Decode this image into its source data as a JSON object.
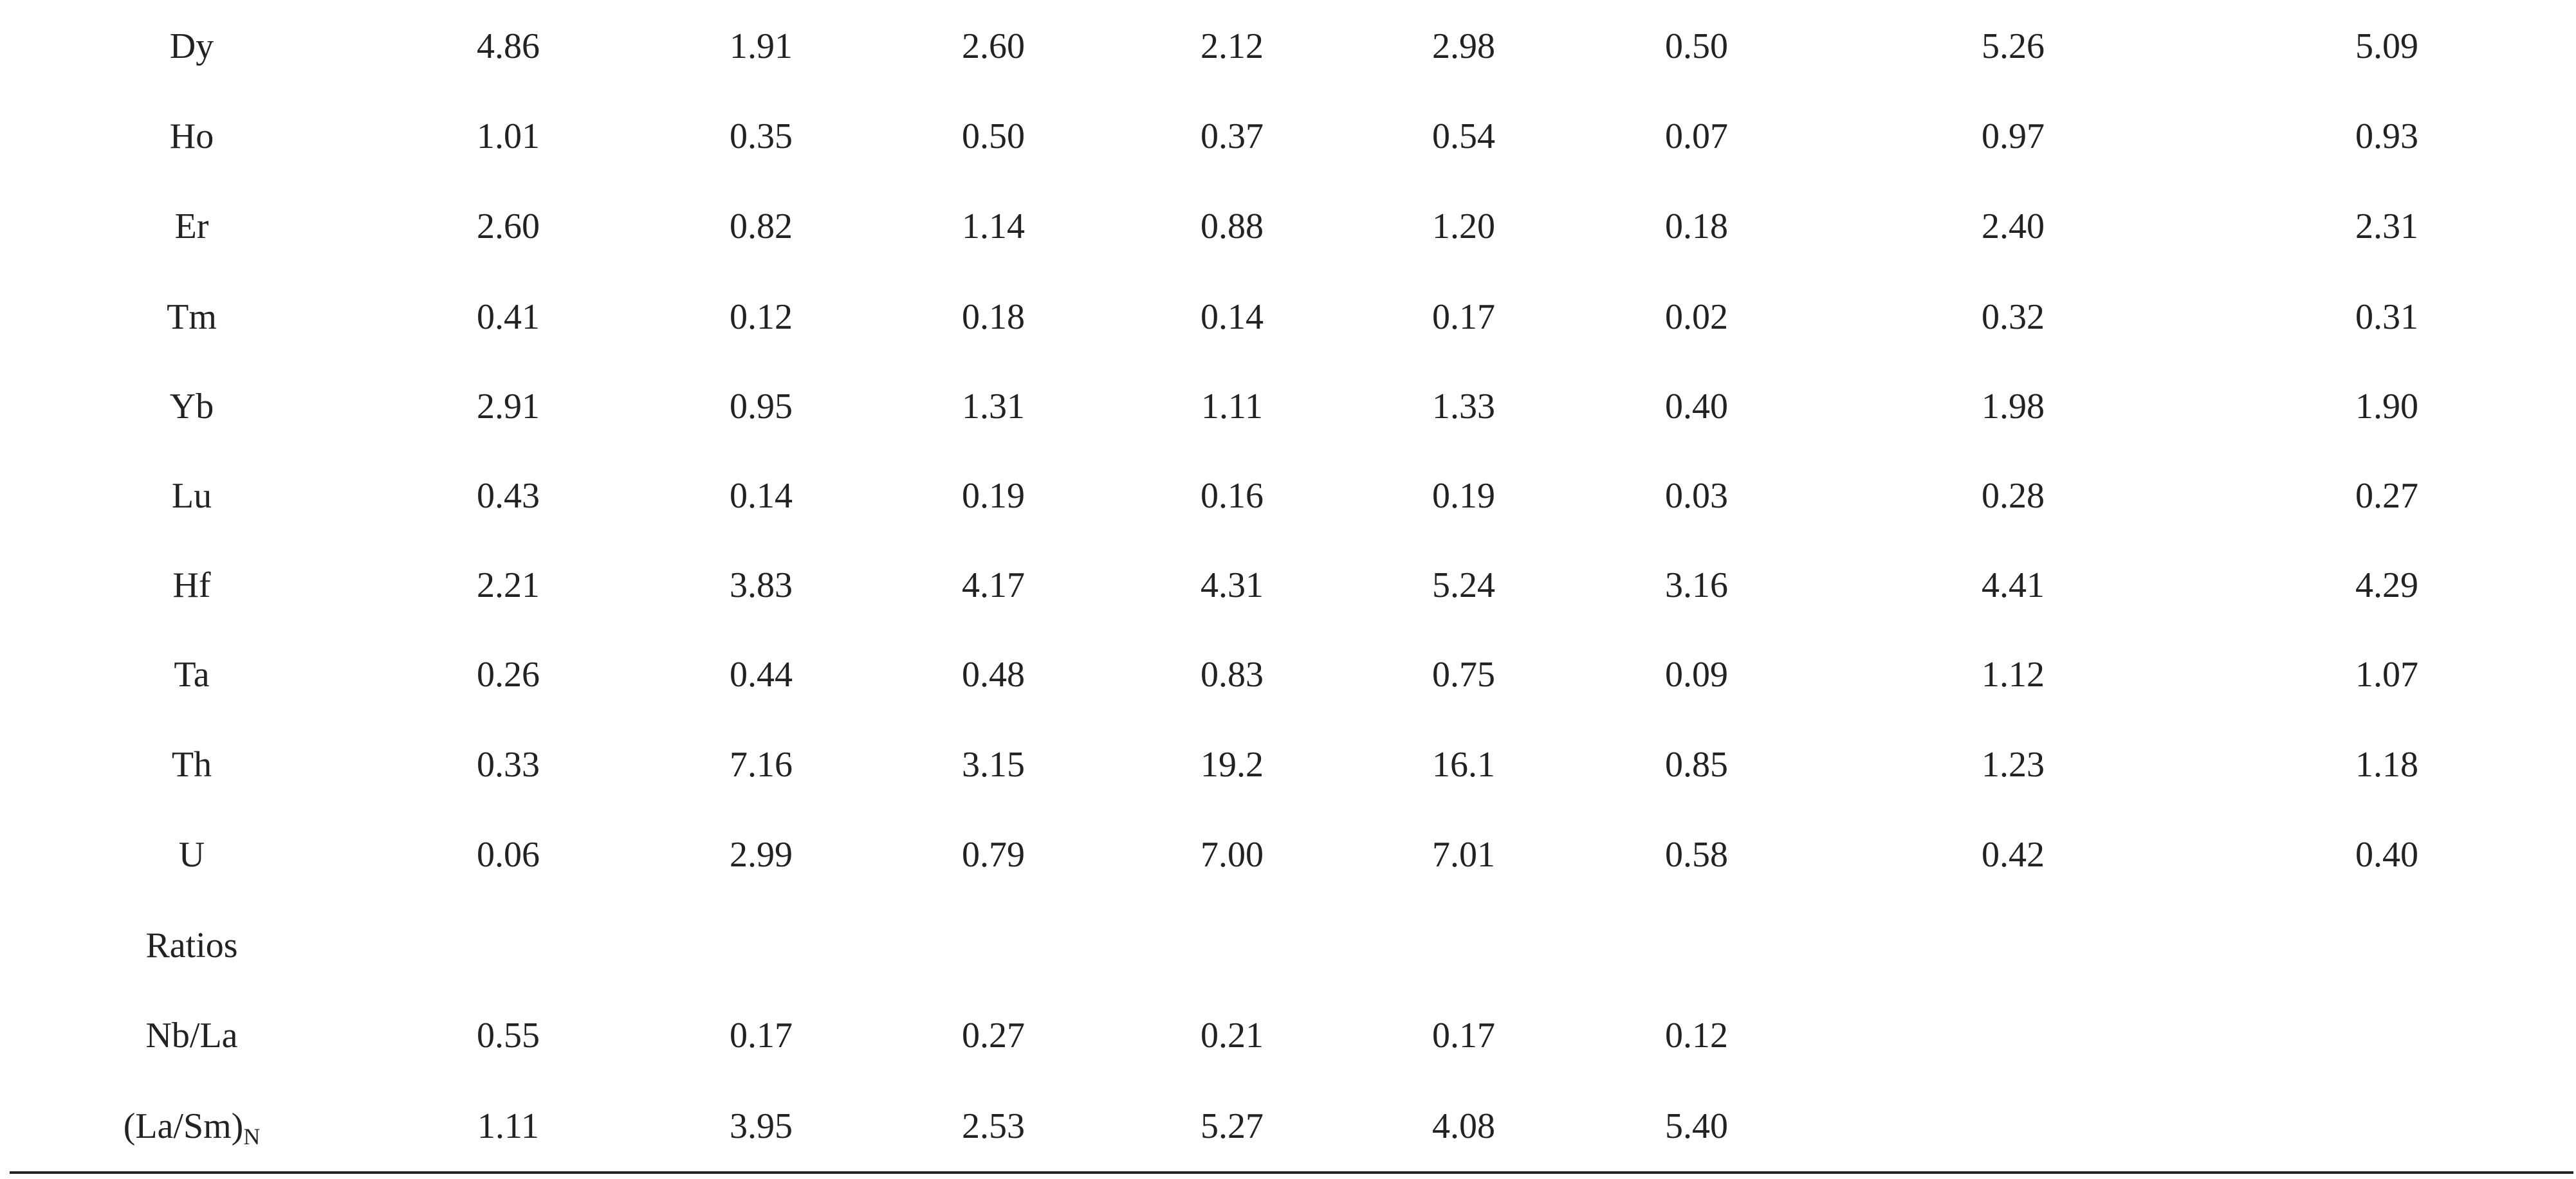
{
  "table": {
    "rows": [
      {
        "label": "Dy",
        "values": [
          "4.86",
          "1.91",
          "2.60",
          "2.12",
          "2.98",
          "0.50",
          "5.26",
          "5.09"
        ]
      },
      {
        "label": "Ho",
        "values": [
          "1.01",
          "0.35",
          "0.50",
          "0.37",
          "0.54",
          "0.07",
          "0.97",
          "0.93"
        ]
      },
      {
        "label": "Er",
        "values": [
          "2.60",
          "0.82",
          "1.14",
          "0.88",
          "1.20",
          "0.18",
          "2.40",
          "2.31"
        ]
      },
      {
        "label": "Tm",
        "values": [
          "0.41",
          "0.12",
          "0.18",
          "0.14",
          "0.17",
          "0.02",
          "0.32",
          "0.31"
        ]
      },
      {
        "label": "Yb",
        "values": [
          "2.91",
          "0.95",
          "1.31",
          "1.11",
          "1.33",
          "0.40",
          "1.98",
          "1.90"
        ]
      },
      {
        "label": "Lu",
        "values": [
          "0.43",
          "0.14",
          "0.19",
          "0.16",
          "0.19",
          "0.03",
          "0.28",
          "0.27"
        ]
      },
      {
        "label": "Hf",
        "values": [
          "2.21",
          "3.83",
          "4.17",
          "4.31",
          "5.24",
          "3.16",
          "4.41",
          "4.29"
        ]
      },
      {
        "label": "Ta",
        "values": [
          "0.26",
          "0.44",
          "0.48",
          "0.83",
          "0.75",
          "0.09",
          "1.12",
          "1.07"
        ]
      },
      {
        "label": "Th",
        "values": [
          "0.33",
          "7.16",
          "3.15",
          "19.2",
          "16.1",
          "0.85",
          "1.23",
          "1.18"
        ]
      },
      {
        "label": "U",
        "values": [
          "0.06",
          "2.99",
          "0.79",
          "7.00",
          "7.01",
          "0.58",
          "0.42",
          "0.40"
        ]
      },
      {
        "label": "Ratios",
        "values": []
      },
      {
        "label": "Nb/La",
        "values": [
          "0.55",
          "0.17",
          "0.27",
          "0.21",
          "0.17",
          "0.12"
        ]
      },
      {
        "label": "(La/Sm)",
        "label_sub": "N",
        "values": [
          "1.11",
          "3.95",
          "2.53",
          "5.27",
          "4.08",
          "5.40"
        ]
      }
    ]
  }
}
